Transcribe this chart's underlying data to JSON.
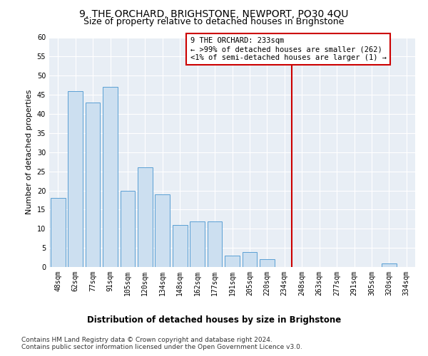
{
  "title": "9, THE ORCHARD, BRIGHSTONE, NEWPORT, PO30 4QU",
  "subtitle": "Size of property relative to detached houses in Brighstone",
  "xlabel": "Distribution of detached houses by size in Brighstone",
  "ylabel": "Number of detached properties",
  "categories": [
    "48sqm",
    "62sqm",
    "77sqm",
    "91sqm",
    "105sqm",
    "120sqm",
    "134sqm",
    "148sqm",
    "162sqm",
    "177sqm",
    "191sqm",
    "205sqm",
    "220sqm",
    "234sqm",
    "248sqm",
    "263sqm",
    "277sqm",
    "291sqm",
    "305sqm",
    "320sqm",
    "334sqm"
  ],
  "values": [
    18,
    46,
    43,
    47,
    20,
    26,
    19,
    11,
    12,
    12,
    3,
    4,
    2,
    0,
    0,
    0,
    0,
    0,
    0,
    1,
    0
  ],
  "bar_color": "#ccdff0",
  "bar_edge_color": "#5a9fd4",
  "vline_index": 13,
  "annotation_title": "9 THE ORCHARD: 233sqm",
  "annotation_line1": "← >99% of detached houses are smaller (262)",
  "annotation_line2": "<1% of semi-detached houses are larger (1) →",
  "vline_color": "#cc0000",
  "annotation_box_edge": "#cc0000",
  "ylim": [
    0,
    60
  ],
  "yticks": [
    0,
    5,
    10,
    15,
    20,
    25,
    30,
    35,
    40,
    45,
    50,
    55,
    60
  ],
  "background_color": "#e8eef5",
  "grid_color": "#ffffff",
  "footer1": "Contains HM Land Registry data © Crown copyright and database right 2024.",
  "footer2": "Contains public sector information licensed under the Open Government Licence v3.0.",
  "title_fontsize": 10,
  "subtitle_fontsize": 9,
  "xlabel_fontsize": 8.5,
  "ylabel_fontsize": 8,
  "tick_fontsize": 7,
  "footer_fontsize": 6.5,
  "annotation_fontsize": 7.5
}
